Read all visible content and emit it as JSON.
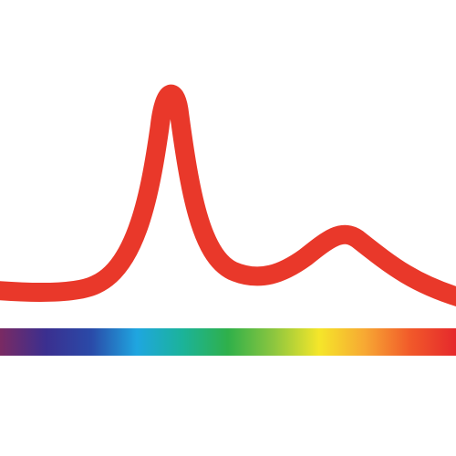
{
  "logo": {
    "icon": "spectrum-peak-icon",
    "curve_color": "#e9382a",
    "background_color": "#ffffff",
    "spectrum_colors": [
      "#7a2a63",
      "#3b2f8f",
      "#2a4aa8",
      "#1fa6e0",
      "#1bb39a",
      "#2fb04a",
      "#8cc63f",
      "#f5e62a",
      "#f7a833",
      "#f1592a",
      "#e5282c"
    ]
  }
}
